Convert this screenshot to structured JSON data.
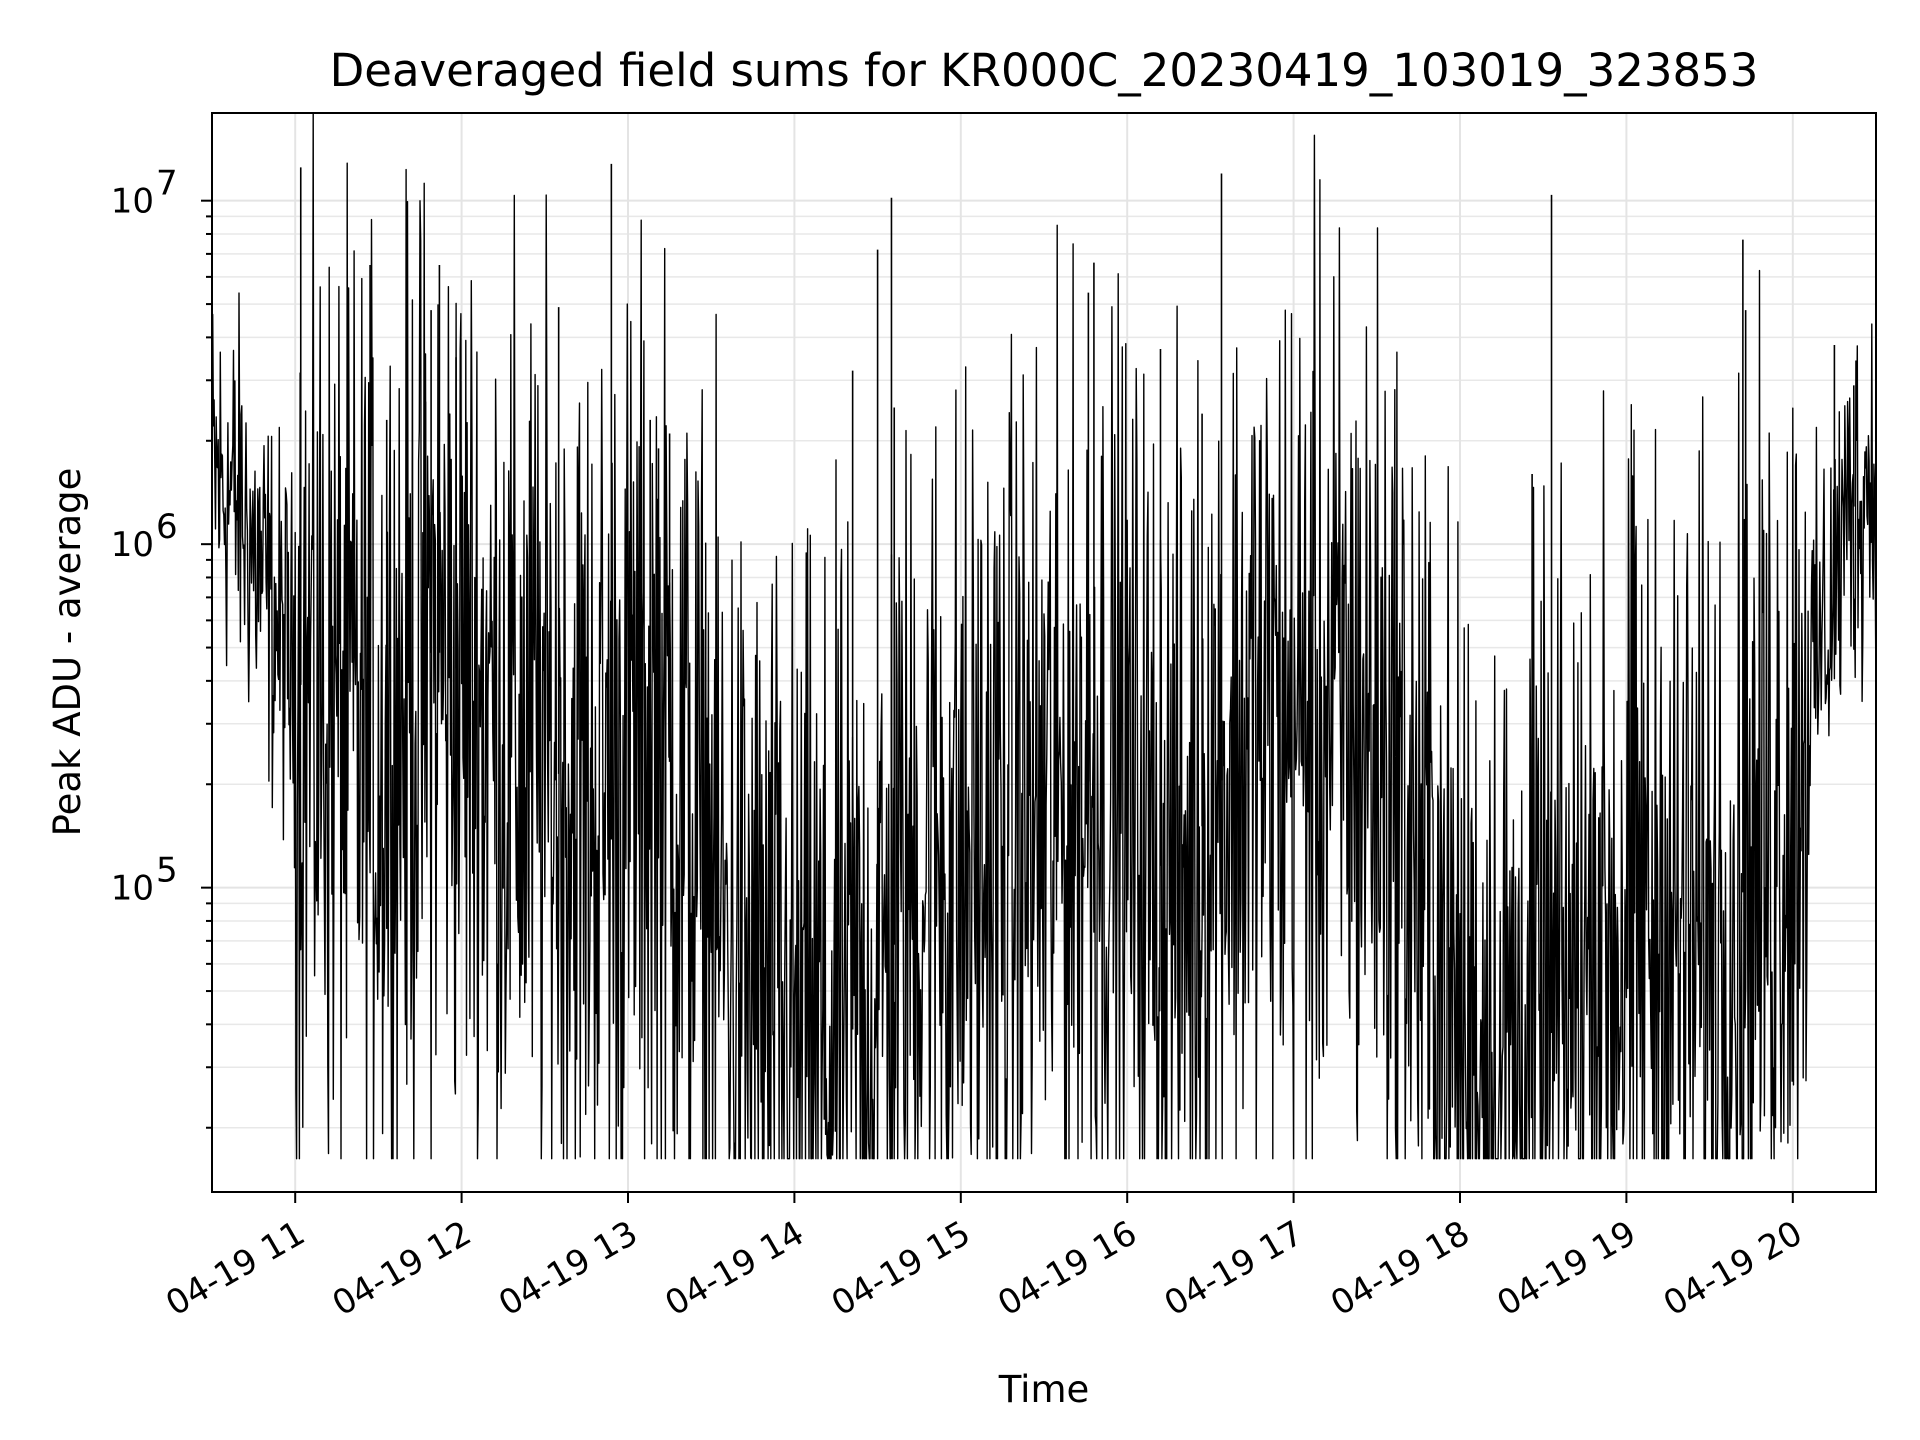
{
  "chart_data": {
    "type": "line",
    "title": "Deaveraged field sums for KR000C_20230419_103019_323853",
    "xlabel": "Time",
    "ylabel": "Peak ADU - average",
    "yscale": "log",
    "ylim": [
      13000,
      18000000
    ],
    "xlim": [
      "2023-04-19 10:30",
      "2023-04-19 20:30"
    ],
    "x_ticks": [
      {
        "value": "2023-04-19 11:00",
        "label": "04-19 11"
      },
      {
        "value": "2023-04-19 12:00",
        "label": "04-19 12"
      },
      {
        "value": "2023-04-19 13:00",
        "label": "04-19 13"
      },
      {
        "value": "2023-04-19 14:00",
        "label": "04-19 14"
      },
      {
        "value": "2023-04-19 15:00",
        "label": "04-19 15"
      },
      {
        "value": "2023-04-19 16:00",
        "label": "04-19 16"
      },
      {
        "value": "2023-04-19 17:00",
        "label": "04-19 17"
      },
      {
        "value": "2023-04-19 18:00",
        "label": "04-19 18"
      },
      {
        "value": "2023-04-19 19:00",
        "label": "04-19 19"
      },
      {
        "value": "2023-04-19 20:00",
        "label": "04-19 20"
      }
    ],
    "y_ticks": [
      {
        "value": 100000,
        "base": "10",
        "exp": "5"
      },
      {
        "value": 1000000,
        "base": "10",
        "exp": "6"
      },
      {
        "value": 10000000,
        "base": "10",
        "exp": "7"
      }
    ],
    "grid": true,
    "line_color": "#000000",
    "series": [
      {
        "x": [
          "2023-04-19 10:30",
          "2023-04-19 10:40",
          "2023-04-19 10:50",
          "2023-04-19 11:00",
          "2023-04-19 11:10",
          "2023-04-19 11:20",
          "2023-04-19 11:30",
          "2023-04-19 11:40",
          "2023-04-19 11:50",
          "2023-04-19 12:00",
          "2023-04-19 12:10",
          "2023-04-19 12:20",
          "2023-04-19 12:30",
          "2023-04-19 12:40",
          "2023-04-19 12:50",
          "2023-04-19 13:00",
          "2023-04-19 13:10",
          "2023-04-19 13:20",
          "2023-04-19 13:30",
          "2023-04-19 13:40",
          "2023-04-19 13:50",
          "2023-04-19 14:00",
          "2023-04-19 14:10",
          "2023-04-19 14:20",
          "2023-04-19 14:30",
          "2023-04-19 14:40",
          "2023-04-19 14:50",
          "2023-04-19 15:00",
          "2023-04-19 15:10",
          "2023-04-19 15:20",
          "2023-04-19 15:30",
          "2023-04-19 15:40",
          "2023-04-19 15:50",
          "2023-04-19 16:00",
          "2023-04-19 16:10",
          "2023-04-19 16:20",
          "2023-04-19 16:30",
          "2023-04-19 16:40",
          "2023-04-19 16:50",
          "2023-04-19 17:00",
          "2023-04-19 17:10",
          "2023-04-19 17:20",
          "2023-04-19 17:30",
          "2023-04-19 17:40",
          "2023-04-19 17:50",
          "2023-04-19 18:00",
          "2023-04-19 18:10",
          "2023-04-19 18:20",
          "2023-04-19 18:30",
          "2023-04-19 18:40",
          "2023-04-19 18:50",
          "2023-04-19 19:00",
          "2023-04-19 19:10",
          "2023-04-19 19:20",
          "2023-04-19 19:30",
          "2023-04-19 19:40",
          "2023-04-19 19:50",
          "2023-04-19 20:00",
          "2023-04-19 20:10",
          "2023-04-19 20:20",
          "2023-04-19 20:30"
        ],
        "y": [
          1600000,
          1300000,
          700000,
          400000,
          350000,
          300000,
          250000,
          350000,
          500000,
          420000,
          330000,
          260000,
          230000,
          200000,
          190000,
          250000,
          300000,
          180000,
          90000,
          60000,
          40000,
          35000,
          33000,
          38000,
          45000,
          90000,
          130000,
          120000,
          110000,
          140000,
          160000,
          170000,
          230000,
          180000,
          120000,
          100000,
          180000,
          250000,
          280000,
          300000,
          330000,
          300000,
          280000,
          170000,
          80000,
          35000,
          33000,
          32000,
          35000,
          45000,
          70000,
          80000,
          75000,
          65000,
          70000,
          90000,
          130000,
          220000,
          500000,
          1200000,
          1700000
        ]
      }
    ],
    "spikes": [
      {
        "x": "2023-04-19 11:02",
        "y": 12500000
      },
      {
        "x": "2023-04-19 11:27",
        "y": 6500000
      },
      {
        "x": "2023-04-19 11:33",
        "y": 2300000
      },
      {
        "x": "2023-04-19 11:49",
        "y": 4800000
      },
      {
        "x": "2023-04-19 11:47",
        "y": 2600000
      },
      {
        "x": "2023-04-19 11:52",
        "y": 6500000
      },
      {
        "x": "2023-04-19 11:58",
        "y": 3500000
      },
      {
        "x": "2023-04-19 12:35",
        "y": 4900000
      },
      {
        "x": "2023-04-19 12:54",
        "y": 12800000
      },
      {
        "x": "2023-04-19 13:08",
        "y": 2300000
      },
      {
        "x": "2023-04-19 13:11",
        "y": 1900000
      },
      {
        "x": "2023-04-19 13:15",
        "y": 2100000
      },
      {
        "x": "2023-04-19 14:21",
        "y": 3200000
      },
      {
        "x": "2023-04-19 14:30",
        "y": 7200000
      },
      {
        "x": "2023-04-19 14:35",
        "y": 10200000
      },
      {
        "x": "2023-04-19 14:36",
        "y": 2500000
      },
      {
        "x": "2023-04-19 15:46",
        "y": 5400000
      },
      {
        "x": "2023-04-19 15:48",
        "y": 6600000
      },
      {
        "x": "2023-04-19 16:12",
        "y": 3700000
      },
      {
        "x": "2023-04-19 16:27",
        "y": 2400000
      },
      {
        "x": "2023-04-19 16:34",
        "y": 12000000
      },
      {
        "x": "2023-04-19 18:33",
        "y": 10400000
      },
      {
        "x": "2023-04-19 18:26",
        "y": 1600000
      },
      {
        "x": "2023-04-19 19:42",
        "y": 7700000
      },
      {
        "x": "2023-04-19 19:43",
        "y": 4800000
      },
      {
        "x": "2023-04-19 20:15",
        "y": 3800000
      },
      {
        "x": "2023-04-19 20:22",
        "y": 2900000
      }
    ]
  }
}
